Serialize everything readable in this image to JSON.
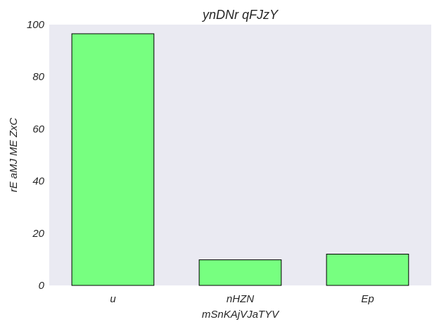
{
  "chart_data": {
    "type": "bar",
    "title": "ynDNr qFJzY",
    "xlabel": "mSnKAjVJaTYV",
    "ylabel": "rE aMJ ME ZxC",
    "categories": [
      "u",
      "nHZN",
      "Ep"
    ],
    "values": [
      96.5,
      9.8,
      12.0
    ],
    "ylim": [
      0,
      100
    ],
    "yticks": [
      0,
      20,
      40,
      60,
      80,
      100
    ],
    "grid": false,
    "bar_color": "#77ff80",
    "bar_edge_color": "#000000",
    "plot_background": "#eaeaf2"
  }
}
